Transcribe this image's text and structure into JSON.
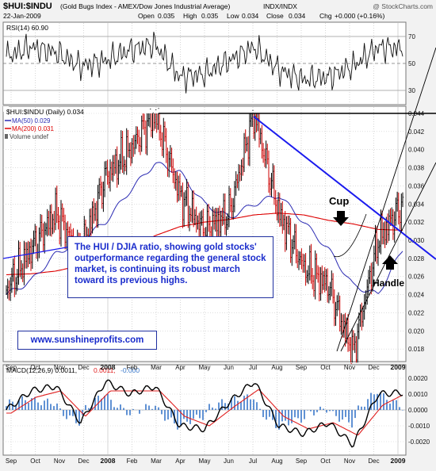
{
  "header": {
    "symbol": "$HUI:$INDU",
    "description": "(Gold Bugs Index - AMEX/Dow Jones Industrial Average)",
    "exchange": "INDX/INDX",
    "watermark": "@ StockCharts.com",
    "date": "22-Jan-2009",
    "quote": {
      "open_label": "Open",
      "open": "0.035",
      "high_label": "High",
      "high": "0.035",
      "low_label": "Low",
      "low": "0.034",
      "close_label": "Close",
      "close": "0.034",
      "chg_label": "Chg",
      "chg": "+0.000 (+0.16%)"
    }
  },
  "rsi_panel": {
    "label": "RSI(14) 60.90",
    "ticks": [
      "70",
      "50",
      "30"
    ],
    "overbought": 70,
    "oversold": 30,
    "ylim": [
      20,
      80
    ]
  },
  "price_panel": {
    "legend": {
      "title": "$HUI:$INDU (Daily) 0.034",
      "ma50": "MA(50) 0.029",
      "ma200": "MA(200) 0.031",
      "volume": "Volume undef"
    },
    "ticks": [
      "0.044",
      "0.042",
      "0.040",
      "0.038",
      "0.036",
      "0.034",
      "0.032",
      "0.030",
      "0.028",
      "0.026",
      "0.024",
      "0.022",
      "0.020",
      "0.018"
    ],
    "annotations": {
      "cup": "Cup",
      "handle": "Handle",
      "note": "The HUI / DJIA ratio, showing gold stocks' outperformance regarding the general stock market, is continuing its robust march toward its previous highs.",
      "website": "www.sunshineprofits.com"
    }
  },
  "macd_panel": {
    "label_main": "MACD(12,26,9) 0.0011,",
    "label_signal": "0.0011,",
    "label_hist": "-0.000",
    "ticks": [
      "0.0020",
      "0.0010",
      "0.0000",
      "-0.0010",
      "-0.0020"
    ]
  },
  "x_axis": {
    "labels": [
      "Sep",
      "Oct",
      "Nov",
      "Dec",
      "2008",
      "Feb",
      "Mar",
      "Apr",
      "May",
      "Jun",
      "Jul",
      "Aug",
      "Sep",
      "Oct",
      "Nov",
      "Dec",
      "2009"
    ]
  },
  "colors": {
    "price_up": "#000000",
    "price_down": "#cc0000",
    "ma50": "#2b2bb3",
    "ma200": "#dd0000",
    "trendline": "#1a1aee",
    "annotation_text": "#1a2ccc",
    "macd_hist": "#3a78c9",
    "background": "#ffffff",
    "frame": "#f2f2f2"
  },
  "chart_data": [
    {
      "type": "line",
      "name": "RSI(14)",
      "x": [
        "2007-09",
        "2007-10",
        "2007-11",
        "2007-12",
        "2008-01",
        "2008-02",
        "2008-03",
        "2008-04",
        "2008-05",
        "2008-06",
        "2008-07",
        "2008-08",
        "2008-09",
        "2008-10",
        "2008-11",
        "2008-12",
        "2009-01"
      ],
      "values": [
        55,
        62,
        58,
        48,
        52,
        60,
        64,
        40,
        42,
        52,
        62,
        45,
        38,
        40,
        48,
        62,
        61
      ],
      "ylim": [
        20,
        80
      ]
    },
    {
      "type": "line",
      "name": "$HUI:$INDU (Daily)",
      "x": [
        "2007-09",
        "2007-10",
        "2007-11",
        "2007-12",
        "2008-01",
        "2008-02",
        "2008-03",
        "2008-04",
        "2008-05",
        "2008-06",
        "2008-07",
        "2008-08",
        "2008-09",
        "2008-10",
        "2008-11",
        "2008-12",
        "2009-01"
      ],
      "series": [
        {
          "name": "$HUI:$INDU",
          "values": [
            0.0245,
            0.029,
            0.033,
            0.0285,
            0.037,
            0.04,
            0.044,
            0.035,
            0.031,
            0.033,
            0.044,
            0.033,
            0.027,
            0.025,
            0.0175,
            0.03,
            0.034
          ]
        },
        {
          "name": "MA(50)",
          "values": [
            0.024,
            0.0255,
            0.0285,
            0.03,
            0.032,
            0.0355,
            0.0385,
            0.0375,
            0.034,
            0.0325,
            0.034,
            0.035,
            0.032,
            0.029,
            0.025,
            0.024,
            0.029
          ]
        },
        {
          "name": "MA(200)",
          "values": [
            0.0262,
            0.0263,
            0.0266,
            0.0272,
            0.028,
            0.029,
            0.0305,
            0.0315,
            0.032,
            0.0323,
            0.0328,
            0.033,
            0.0328,
            0.0322,
            0.0318,
            0.0312,
            0.0311
          ]
        }
      ],
      "ylim": [
        0.016,
        0.044
      ]
    },
    {
      "type": "line",
      "name": "MACD(12,26,9)",
      "x": [
        "2007-09",
        "2007-10",
        "2007-11",
        "2007-12",
        "2008-01",
        "2008-02",
        "2008-03",
        "2008-04",
        "2008-05",
        "2008-06",
        "2008-07",
        "2008-08",
        "2008-09",
        "2008-10",
        "2008-11",
        "2008-12",
        "2009-01"
      ],
      "series": [
        {
          "name": "MACD",
          "values": [
            0.0,
            0.0012,
            0.0015,
            -0.0008,
            0.0018,
            0.001,
            0.0015,
            -0.001,
            -0.0012,
            0.0005,
            0.0018,
            -0.001,
            -0.0015,
            -0.0008,
            -0.0022,
            0.001,
            0.0011
          ]
        },
        {
          "name": "Signal",
          "values": [
            -0.0002,
            0.0008,
            0.0012,
            -0.0004,
            0.0012,
            0.0012,
            0.0012,
            -0.0004,
            -0.001,
            0.0002,
            0.0013,
            -0.0004,
            -0.0012,
            -0.0008,
            -0.0016,
            0.0003,
            0.0011
          ]
        }
      ],
      "ylim": [
        -0.0028,
        0.0028
      ]
    }
  ]
}
